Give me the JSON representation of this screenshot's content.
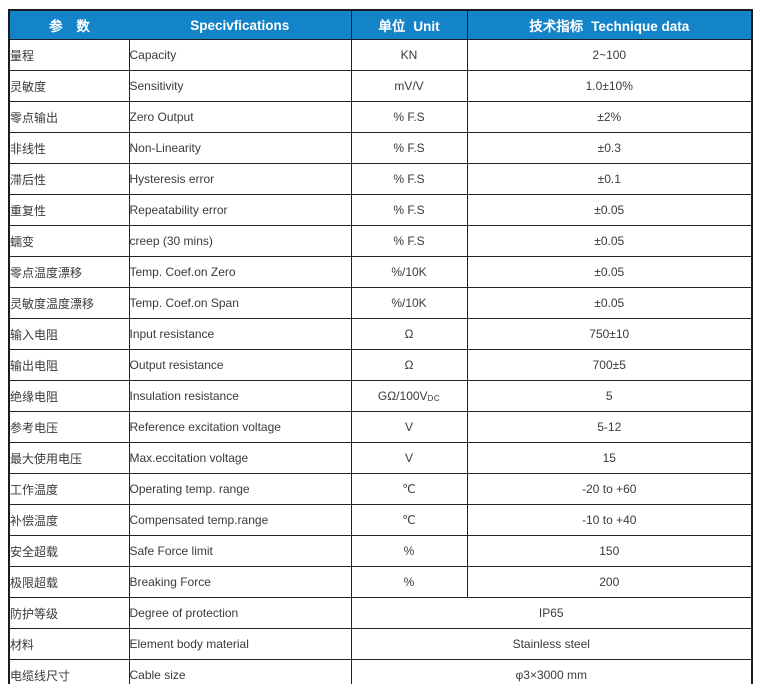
{
  "header": {
    "col1": {
      "cn": "参 数",
      "en": ""
    },
    "col2": {
      "ccn": "",
      "en": "Specivfications"
    },
    "col3": {
      "cn": "单位",
      "en": "Unit"
    },
    "col4": {
      "cn": "技术指标",
      "en": "Technique data"
    }
  },
  "colors": {
    "header_bg": "#1484c8",
    "header_text": "#ffffff",
    "border": "#1c1c1c",
    "body_text": "#3a3a3a"
  },
  "rows": [
    {
      "cn": "量程",
      "en": "Capacity",
      "unit": "KN",
      "value": "2~100"
    },
    {
      "cn": "灵敏度",
      "en": "Sensitivity",
      "unit": "mV/V",
      "value": "1.0±10%"
    },
    {
      "cn": "零点输出",
      "en": "Zero Output",
      "unit": "% F.S",
      "value": "±2%"
    },
    {
      "cn": "非线性",
      "en": "Non-Linearity",
      "unit": "% F.S",
      "value": "±0.3"
    },
    {
      "cn": "滞后性",
      "en": "Hysteresis error",
      "unit": "% F.S",
      "value": "±0.1"
    },
    {
      "cn": "重复性",
      "en": "Repeatability error",
      "unit": "% F.S",
      "value": "±0.05"
    },
    {
      "cn": "蠕变",
      "en": "creep (30 mins)",
      "unit": "% F.S",
      "value": "±0.05"
    },
    {
      "cn": "零点温度漂移",
      "en": "Temp. Coef.on Zero",
      "unit": "%/10K",
      "value": "±0.05"
    },
    {
      "cn": "灵敏度温度漂移",
      "en": "Temp. Coef.on Span",
      "unit": "%/10K",
      "value": "±0.05"
    },
    {
      "cn": "输入电阻",
      "en": "Input resistance",
      "unit": "Ω",
      "value": "750±10"
    },
    {
      "cn": "输出电阻",
      "en": "Output resistance",
      "unit": "Ω",
      "value": "700±5"
    },
    {
      "cn": "绝缘电阻",
      "en": "Insulation resistance",
      "unit": "GΩ/100V",
      "unit_sub": "DC",
      "value": "5"
    },
    {
      "cn": "参考电压",
      "en": "Reference excitation voltage",
      "unit": "V",
      "value": "5-12"
    },
    {
      "cn": "最大使用电压",
      "en": "Max.eccitation voltage",
      "unit": "V",
      "value": "15"
    },
    {
      "cn": "工作温度",
      "en": "Operating temp. range",
      "unit": "℃",
      "value": "-20 to +60"
    },
    {
      "cn": "补偿温度",
      "en": "Compensated temp.range",
      "unit": "℃",
      "value": "-10 to +40"
    },
    {
      "cn": "安全超载",
      "en": "Safe Force limit",
      "unit": "%",
      "value": "150"
    },
    {
      "cn": "极限超载",
      "en": "Breaking Force",
      "unit": "%",
      "value": "200"
    },
    {
      "cn": "防护等级",
      "en": "Degree of protection",
      "merged": true,
      "value": "IP65"
    },
    {
      "cn": "材料",
      "en": "Element body material",
      "merged": true,
      "value": "Stainless steel"
    },
    {
      "cn": "电缆线尺寸",
      "en": "Cable size",
      "merged": true,
      "value": "φ3×3000 mm"
    }
  ]
}
